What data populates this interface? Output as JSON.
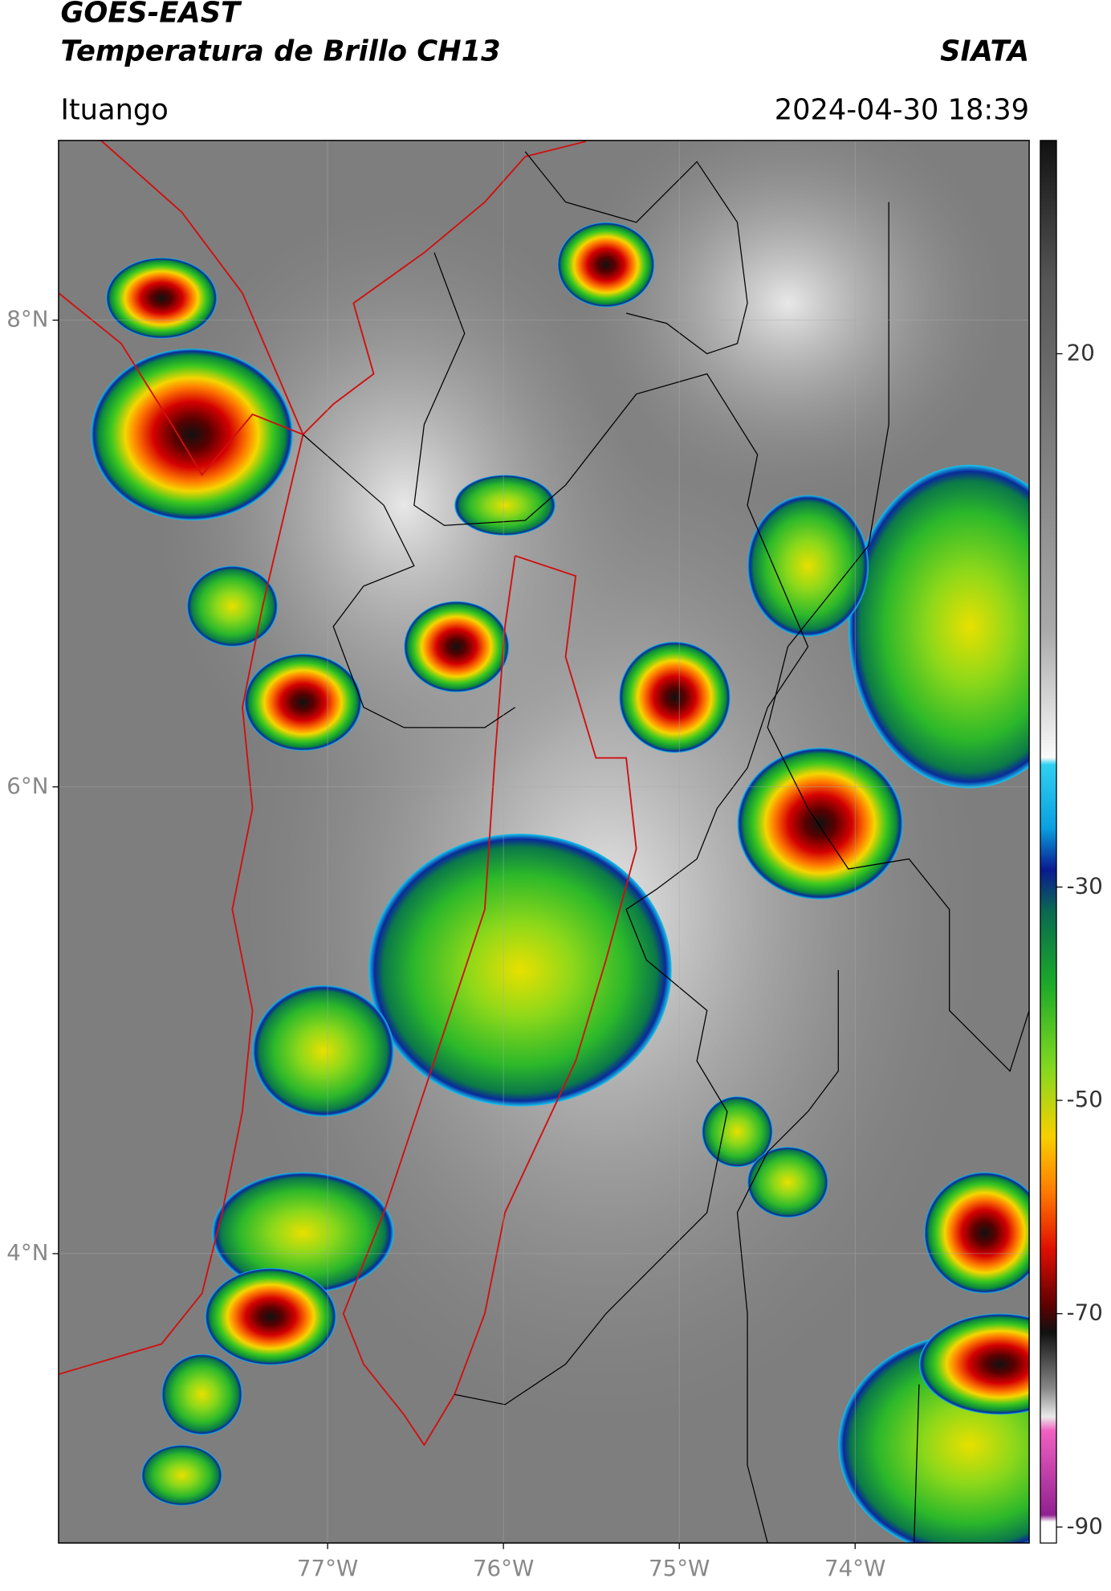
{
  "header": {
    "title": "GOES-EAST",
    "subtitle": "Temperatura de Brillo CH13",
    "source": "SIATA",
    "location": "Ituango",
    "timestamp": "2024-04-30 18:39"
  },
  "map": {
    "xlim": [
      -78.53,
      -73.01
    ],
    "ylim": [
      2.76,
      8.77
    ],
    "xticks": [
      {
        "value": -77,
        "label": "77°W"
      },
      {
        "value": -76,
        "label": "76°W"
      },
      {
        "value": -75,
        "label": "75°W"
      },
      {
        "value": -74,
        "label": "74°W"
      }
    ],
    "yticks": [
      {
        "value": 8,
        "label": "8°N"
      },
      {
        "value": 6,
        "label": "6°N"
      },
      {
        "value": 4,
        "label": "4°N"
      }
    ],
    "grid": true
  },
  "colorbar": {
    "range": [
      -91.5,
      40
    ],
    "ticks": [
      20,
      -30,
      -50,
      -70,
      -90
    ]
  }
}
